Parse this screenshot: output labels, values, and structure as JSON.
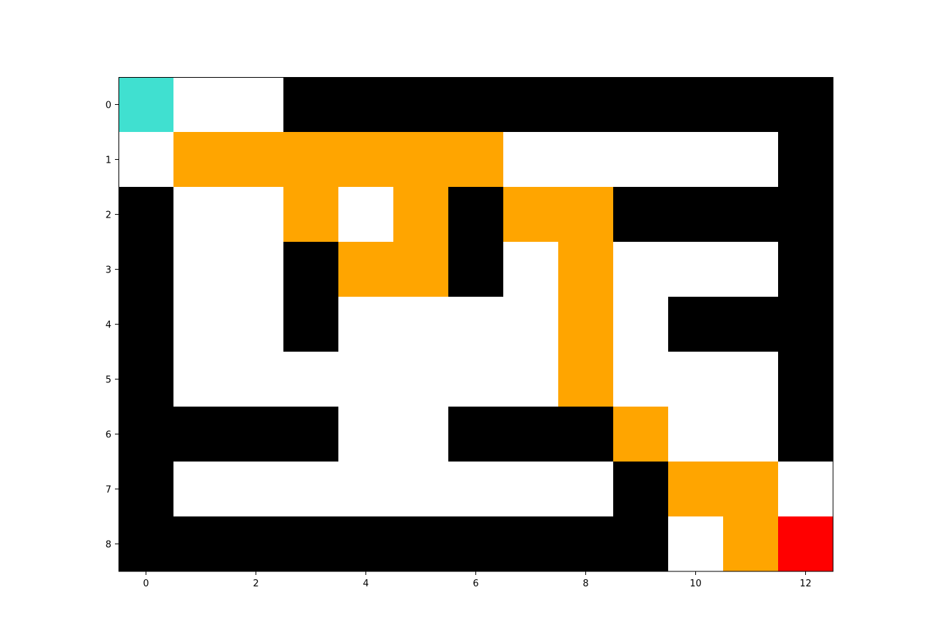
{
  "chart_data": {
    "type": "heatmap",
    "title": "",
    "xlabel": "",
    "ylabel": "",
    "xlim": [
      -0.5,
      12.5
    ],
    "ylim": [
      8.5,
      -0.5
    ],
    "grid": false,
    "x_ticks": [
      {
        "value": 0,
        "label": "0"
      },
      {
        "value": 2,
        "label": "2"
      },
      {
        "value": 4,
        "label": "4"
      },
      {
        "value": 6,
        "label": "6"
      },
      {
        "value": 8,
        "label": "8"
      },
      {
        "value": 10,
        "label": "10"
      },
      {
        "value": 12,
        "label": "12"
      }
    ],
    "y_ticks": [
      {
        "value": 0,
        "label": "0"
      },
      {
        "value": 1,
        "label": "1"
      },
      {
        "value": 2,
        "label": "2"
      },
      {
        "value": 3,
        "label": "3"
      },
      {
        "value": 4,
        "label": "4"
      },
      {
        "value": 5,
        "label": "5"
      },
      {
        "value": 6,
        "label": "6"
      },
      {
        "value": 7,
        "label": "7"
      },
      {
        "value": 8,
        "label": "8"
      }
    ],
    "colors": {
      "W": "#000000",
      "O": "#ffffff",
      "P": "#ffa500",
      "S": "#40e0d0",
      "E": "#ff0000"
    },
    "cell_names": {
      "W": "wall-cell",
      "O": "open-cell",
      "P": "path-cell",
      "S": "start-cell",
      "E": "end-cell"
    },
    "grid_rows": [
      "SOOWWWWWWWWWW",
      "OPPPPPPOOOOOW",
      "WOOPOPWPPWWWW",
      "WOOWPPWOPOOOW",
      "WOOWOOOOPOWWW",
      "WOOOOOOOPOOOW",
      "WWWWOOWWWPOOW",
      "WOOOOOOOOWPPO",
      "WWWWWWWWWWOPE"
    ]
  }
}
